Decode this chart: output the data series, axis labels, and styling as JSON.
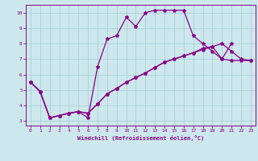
{
  "background_color": "#cde8ec",
  "grid_color": "#a8d0d8",
  "line_color": "#880088",
  "xlim": [
    -0.5,
    23.5
  ],
  "ylim": [
    2.7,
    10.5
  ],
  "yticks": [
    3,
    4,
    5,
    6,
    7,
    8,
    9,
    10
  ],
  "xticks": [
    0,
    1,
    2,
    3,
    4,
    5,
    6,
    7,
    8,
    9,
    10,
    11,
    12,
    13,
    14,
    15,
    16,
    17,
    18,
    19,
    20,
    21,
    22,
    23
  ],
  "xlabel": "Windchill (Refroidissement éolien,°C)",
  "line1_x": [
    0,
    1,
    2,
    3,
    4,
    5,
    6,
    7,
    8,
    9,
    10,
    11,
    12,
    13,
    14,
    15,
    16,
    17,
    18,
    19,
    20,
    21
  ],
  "line1_y": [
    5.5,
    4.9,
    3.2,
    3.35,
    3.5,
    3.6,
    3.2,
    6.5,
    8.3,
    8.5,
    9.7,
    9.1,
    10.0,
    10.15,
    10.15,
    10.15,
    10.15,
    8.5,
    8.0,
    7.5,
    7.0,
    8.0
  ],
  "line2_x": [
    0,
    1,
    2,
    3,
    4,
    5,
    6,
    7,
    8,
    9,
    10,
    11,
    12,
    13,
    14,
    15,
    16,
    17,
    18,
    19,
    20,
    21,
    22,
    23
  ],
  "line2_y": [
    5.5,
    4.9,
    3.2,
    3.35,
    3.5,
    3.6,
    3.5,
    4.1,
    4.75,
    5.1,
    5.5,
    5.8,
    6.1,
    6.45,
    6.8,
    7.0,
    7.2,
    7.4,
    7.7,
    7.8,
    8.0,
    7.5,
    7.0,
    6.9
  ],
  "line3_x": [
    0,
    1,
    2,
    3,
    4,
    5,
    6,
    7,
    8,
    9,
    10,
    11,
    12,
    13,
    14,
    15,
    16,
    17,
    18,
    19,
    20,
    21,
    22,
    23
  ],
  "line3_y": [
    5.5,
    4.9,
    3.2,
    3.35,
    3.5,
    3.6,
    3.5,
    4.1,
    4.75,
    5.1,
    5.5,
    5.8,
    6.1,
    6.45,
    6.8,
    7.0,
    7.2,
    7.4,
    7.6,
    7.8,
    7.0,
    6.9,
    6.9,
    6.9
  ]
}
